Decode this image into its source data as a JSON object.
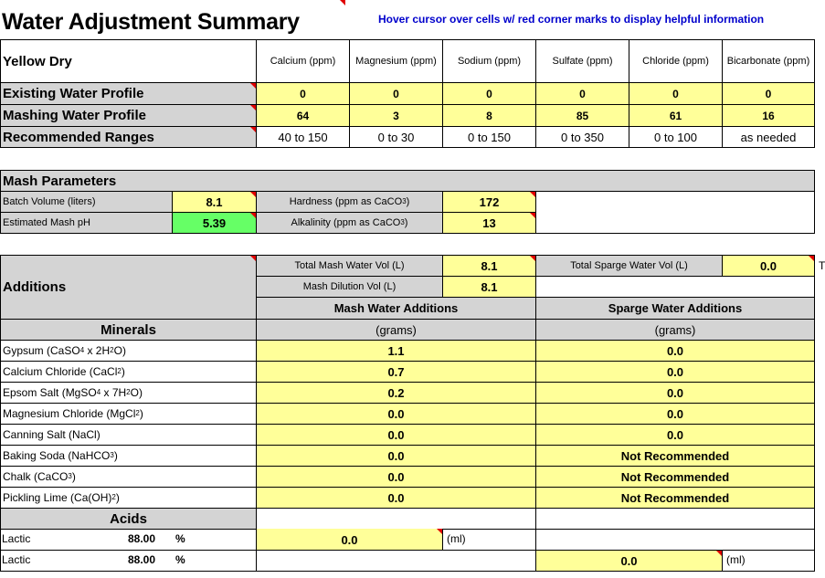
{
  "title": "Water Adjustment Summary",
  "hint": "Hover cursor over cells w/ red corner marks to display helpful information",
  "profile": {
    "name": "Yellow Dry",
    "columns": [
      "Calcium (ppm)",
      "Magnesium (ppm)",
      "Sodium (ppm)",
      "Sulfate (ppm)",
      "Chloride (ppm)",
      "Bicarbonate (ppm)"
    ],
    "rows": [
      {
        "label": "Existing Water Profile",
        "values": [
          "0",
          "0",
          "0",
          "0",
          "0",
          "0"
        ]
      },
      {
        "label": "Mashing Water Profile",
        "values": [
          "64",
          "3",
          "8",
          "85",
          "61",
          "16"
        ]
      },
      {
        "label": "Recommended Ranges",
        "values": [
          "40 to 150",
          "0 to 30",
          "0 to 150",
          "0 to 350",
          "0 to 100",
          "as needed"
        ]
      }
    ]
  },
  "mash": {
    "header": "Mash Parameters",
    "batch_volume_label": "Batch Volume (liters)",
    "batch_volume": "8.1",
    "mash_ph_label": "Estimated Mash pH",
    "mash_ph": "5.39",
    "hardness_label": "Hardness (ppm as CaCO",
    "hardness": "172",
    "alkalinity_label": "Alkalinity (ppm as CaCO",
    "alkalinity": "13"
  },
  "additions": {
    "header": "Additions",
    "total_mash_label": "Total Mash Water Vol (L)",
    "total_mash": "8.1",
    "total_sparge_label": "Total Sparge Water Vol (L)",
    "total_sparge": "0.0",
    "dilution_label": "Mash Dilution Vol (L)",
    "dilution": "8.1",
    "mash_col": "Mash Water Additions",
    "sparge_col": "Sparge Water Additions",
    "minerals_header": "Minerals",
    "unit": "(grams)",
    "minerals": [
      {
        "label": "Gypsum (CaSO4 x 2H2O)",
        "mash": "1.1",
        "sparge": "0.0"
      },
      {
        "label": "Calcium Chloride (CaCl2)",
        "mash": "0.7",
        "sparge": "0.0"
      },
      {
        "label": "Epsom Salt (MgSO4 x 7H2O)",
        "mash": "0.2",
        "sparge": "0.0"
      },
      {
        "label": "Magnesium Chloride (MgCl2)",
        "mash": "0.0",
        "sparge": "0.0"
      },
      {
        "label": "Canning Salt (NaCl)",
        "mash": "0.0",
        "sparge": "0.0"
      },
      {
        "label": "Baking Soda (NaHCO3)",
        "mash": "0.0",
        "sparge": "Not Recommended"
      },
      {
        "label": "Chalk (CaCO3)",
        "mash": "0.0",
        "sparge": "Not Recommended"
      },
      {
        "label": "Pickling Lime (Ca(OH)2)",
        "mash": "0.0",
        "sparge": "Not Recommended"
      }
    ],
    "acids_header": "Acids",
    "acids": [
      {
        "name": "Lactic",
        "pct": "88.00",
        "pct_sym": "%",
        "value": "0.0",
        "unit": "(ml)"
      },
      {
        "name": "Lactic",
        "pct": "88.00",
        "pct_sym": "%",
        "value": "0.0",
        "unit": "(ml)"
      }
    ]
  }
}
